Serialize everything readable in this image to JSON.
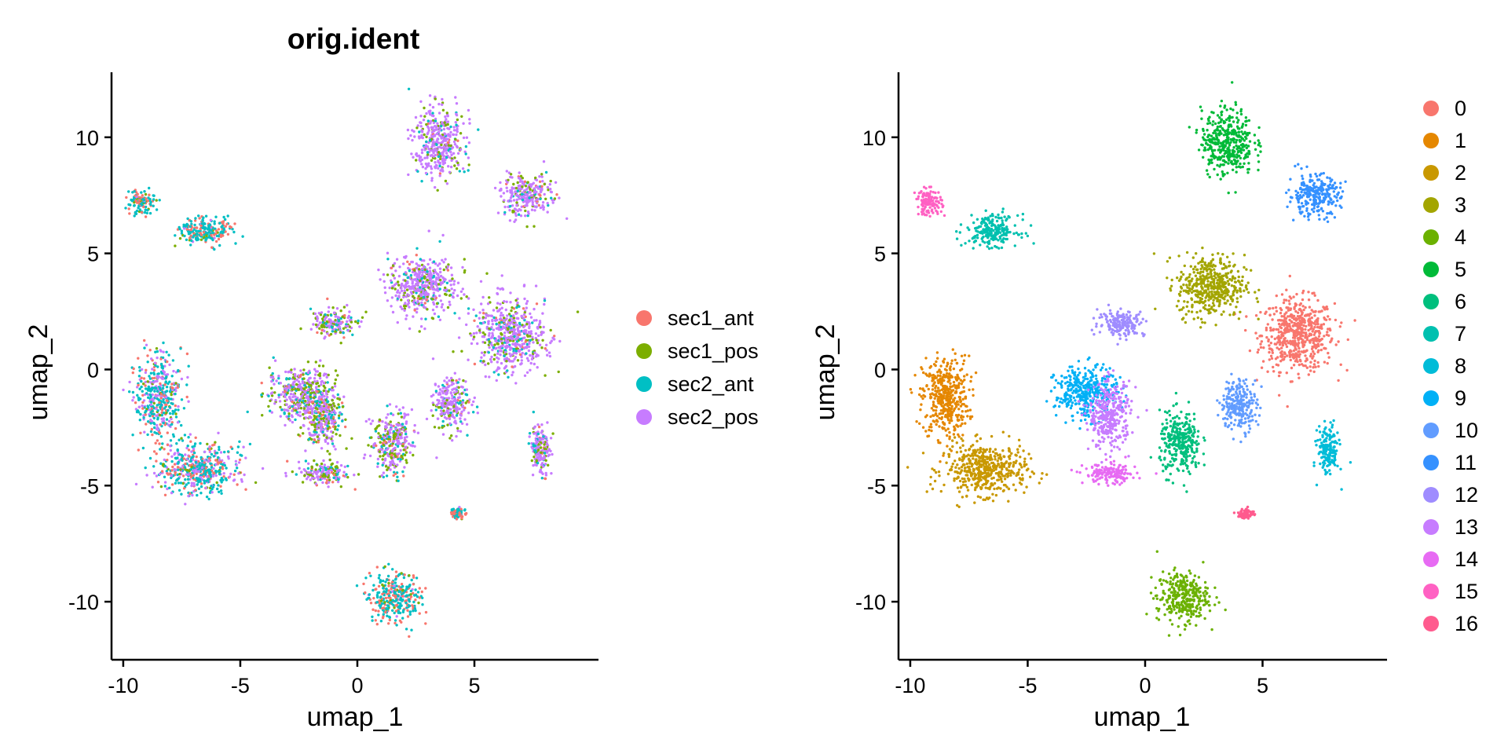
{
  "chart_data": [
    {
      "type": "scatter",
      "title": "orig.ident",
      "xlabel": "umap_1",
      "ylabel": "umap_2",
      "xlim": [
        -10.5,
        10.3
      ],
      "ylim": [
        -12.5,
        12.8
      ],
      "xticks": [
        -10,
        -5,
        0,
        5
      ],
      "yticks": [
        -10,
        -5,
        0,
        5,
        10
      ],
      "xtick_labels": [
        "-10",
        "-5",
        "0",
        "5"
      ],
      "ytick_labels": [
        "-10",
        "-5",
        "0",
        "5",
        "10"
      ],
      "grid": false,
      "legend_position": "right",
      "legend": [
        "sec1_ant",
        "sec1_pos",
        "sec2_ant",
        "sec2_pos"
      ],
      "legend_colors": [
        "#F8766D",
        "#7CAE00",
        "#00BFC4",
        "#C77CFF"
      ],
      "series_mix": [
        {
          "region": "top-left-islands",
          "center": [
            -7.5,
            6.5
          ],
          "weights": [
            0.25,
            0.05,
            0.65,
            0.05
          ]
        },
        {
          "region": "left-mass",
          "center": [
            -7.5,
            -2.5
          ],
          "weights": [
            0.2,
            0.05,
            0.45,
            0.3
          ]
        },
        {
          "region": "central-ring",
          "center": [
            -1.5,
            -0.5
          ],
          "weights": [
            0.05,
            0.3,
            0.15,
            0.5
          ]
        },
        {
          "region": "upper-right",
          "center": [
            5.5,
            3.0
          ],
          "weights": [
            0.03,
            0.17,
            0.1,
            0.7
          ]
        },
        {
          "region": "bottom-island",
          "center": [
            1.8,
            -9.5
          ],
          "weights": [
            0.35,
            0.05,
            0.55,
            0.05
          ]
        }
      ]
    },
    {
      "type": "scatter",
      "title": "",
      "xlabel": "umap_1",
      "ylabel": "umap_2",
      "xlim": [
        -10.5,
        10.3
      ],
      "ylim": [
        -12.5,
        12.8
      ],
      "xticks": [
        -10,
        -5,
        0,
        5
      ],
      "yticks": [
        -10,
        -5,
        0,
        5,
        10
      ],
      "xtick_labels": [
        "-10",
        "-5",
        "0",
        "5"
      ],
      "ytick_labels": [
        "-10",
        "-5",
        "0",
        "5",
        "10"
      ],
      "grid": false,
      "legend_position": "right",
      "legend": [
        "0",
        "1",
        "2",
        "3",
        "4",
        "5",
        "6",
        "7",
        "8",
        "9",
        "10",
        "11",
        "12",
        "13",
        "14",
        "15",
        "16"
      ],
      "legend_colors": [
        "#F8766D",
        "#E58700",
        "#C99800",
        "#A3A500",
        "#6BB100",
        "#00BA38",
        "#00BF7D",
        "#00C0AF",
        "#00BCD8",
        "#00B0F6",
        "#619CFF",
        "#3591FF",
        "#9F8CFF",
        "#C77CFF",
        "#E76BF3",
        "#FF61C3",
        "#FF5B8E"
      ],
      "clusters": [
        {
          "label": "0",
          "center": [
            6.5,
            1.5
          ],
          "spread": [
            1.4,
            1.4
          ]
        },
        {
          "label": "1",
          "center": [
            -8.5,
            -1.2
          ],
          "spread": [
            0.9,
            1.6
          ]
        },
        {
          "label": "2",
          "center": [
            -6.8,
            -4.3
          ],
          "spread": [
            1.6,
            1.0
          ]
        },
        {
          "label": "3",
          "center": [
            2.8,
            3.6
          ],
          "spread": [
            1.3,
            1.2
          ]
        },
        {
          "label": "4",
          "center": [
            1.6,
            -9.8
          ],
          "spread": [
            1.0,
            1.0
          ]
        },
        {
          "label": "5",
          "center": [
            3.5,
            9.8
          ],
          "spread": [
            1.0,
            1.3
          ]
        },
        {
          "label": "6",
          "center": [
            1.5,
            -3.2
          ],
          "spread": [
            0.8,
            1.2
          ]
        },
        {
          "label": "7",
          "center": [
            -6.5,
            6.0
          ],
          "spread": [
            1.0,
            0.6
          ]
        },
        {
          "label": "8",
          "center": [
            7.8,
            -3.5
          ],
          "spread": [
            0.4,
            1.0
          ]
        },
        {
          "label": "9",
          "center": [
            -2.5,
            -1.0
          ],
          "spread": [
            1.2,
            1.0
          ]
        },
        {
          "label": "10",
          "center": [
            4.0,
            -1.5
          ],
          "spread": [
            0.7,
            1.0
          ]
        },
        {
          "label": "11",
          "center": [
            7.2,
            7.5
          ],
          "spread": [
            1.0,
            0.8
          ]
        },
        {
          "label": "12",
          "center": [
            -1.0,
            2.0
          ],
          "spread": [
            0.9,
            0.5
          ]
        },
        {
          "label": "13",
          "center": [
            -1.5,
            -2.0
          ],
          "spread": [
            0.8,
            1.3
          ]
        },
        {
          "label": "14",
          "center": [
            -1.5,
            -4.5
          ],
          "spread": [
            1.0,
            0.4
          ]
        },
        {
          "label": "15",
          "center": [
            -9.2,
            7.2
          ],
          "spread": [
            0.5,
            0.5
          ]
        },
        {
          "label": "16",
          "center": [
            4.3,
            -6.2
          ],
          "spread": [
            0.3,
            0.2
          ]
        }
      ]
    }
  ]
}
